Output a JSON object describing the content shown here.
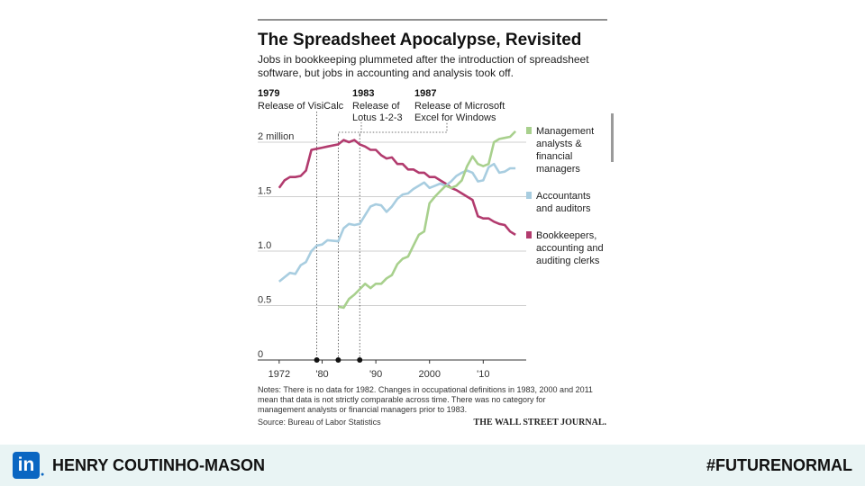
{
  "chart_data": {
    "type": "line",
    "title": "The Spreadsheet Apocalypse, Revisited",
    "subtitle_lines": [
      "Jobs in bookkeeping plummeted after the introduction of spreadsheet",
      "software, but jobs in accounting and analysis took off."
    ],
    "xlim": [
      1968,
      2018
    ],
    "ylim": [
      0,
      2.0
    ],
    "x_ticks": [
      {
        "x": 1972,
        "label": "1972"
      },
      {
        "x": 1980,
        "label": "'80"
      },
      {
        "x": 1990,
        "label": "'90"
      },
      {
        "x": 2000,
        "label": "2000"
      },
      {
        "x": 2010,
        "label": "'10"
      }
    ],
    "y_ticks": [
      {
        "y": 0,
        "label": "0"
      },
      {
        "y": 0.5,
        "label": "0.5"
      },
      {
        "y": 1.0,
        "label": "1.0"
      },
      {
        "y": 1.5,
        "label": "1.5"
      },
      {
        "y": 2.0,
        "label": "2 million"
      }
    ],
    "grid": true,
    "events": [
      {
        "year": 1979,
        "label_year": "1979",
        "desc": [
          "Release of VisiCalc"
        ]
      },
      {
        "year": 1983,
        "label_year": "1983",
        "desc": [
          "Release of",
          "Lotus 1-2-3"
        ]
      },
      {
        "year": 1987,
        "label_year": "1987",
        "desc": [
          "Release of Microsoft",
          "Excel for Windows"
        ]
      }
    ],
    "series": [
      {
        "name_lines": [
          "Bookkeepers,",
          "accounting and",
          "auditing clerks"
        ],
        "color": "#b23b6e",
        "x": [
          1972,
          1973,
          1974,
          1975,
          1976,
          1977,
          1978,
          1979,
          1980,
          1981,
          1983,
          1984,
          1985,
          1986,
          1987,
          1988,
          1989,
          1990,
          1991,
          1992,
          1993,
          1994,
          1995,
          1996,
          1997,
          1998,
          1999,
          2000,
          2001,
          2002,
          2003,
          2004,
          2005,
          2006,
          2007,
          2008,
          2009,
          2010,
          2011,
          2012,
          2013,
          2014,
          2015,
          2016
        ],
        "y": [
          1.58,
          1.65,
          1.68,
          1.68,
          1.69,
          1.74,
          1.93,
          1.94,
          1.95,
          1.96,
          1.98,
          2.02,
          2.0,
          2.02,
          1.98,
          1.96,
          1.93,
          1.93,
          1.88,
          1.85,
          1.86,
          1.8,
          1.8,
          1.75,
          1.75,
          1.72,
          1.72,
          1.68,
          1.68,
          1.65,
          1.62,
          1.58,
          1.56,
          1.53,
          1.5,
          1.47,
          1.32,
          1.3,
          1.3,
          1.27,
          1.25,
          1.24,
          1.18,
          1.15
        ]
      },
      {
        "name_lines": [
          "Accountants",
          "and auditors"
        ],
        "color": "#a8cde0",
        "x": [
          1972,
          1973,
          1974,
          1975,
          1976,
          1977,
          1978,
          1979,
          1980,
          1981,
          1983,
          1984,
          1985,
          1986,
          1987,
          1988,
          1989,
          1990,
          1991,
          1992,
          1993,
          1994,
          1995,
          1996,
          1997,
          1998,
          1999,
          2000,
          2001,
          2002,
          2003,
          2004,
          2005,
          2006,
          2007,
          2008,
          2009,
          2010,
          2011,
          2012,
          2013,
          2014,
          2015,
          2016
        ],
        "y": [
          0.72,
          0.76,
          0.8,
          0.79,
          0.87,
          0.9,
          1.0,
          1.05,
          1.06,
          1.1,
          1.09,
          1.21,
          1.25,
          1.24,
          1.25,
          1.33,
          1.41,
          1.43,
          1.42,
          1.36,
          1.41,
          1.48,
          1.52,
          1.53,
          1.57,
          1.6,
          1.63,
          1.58,
          1.6,
          1.62,
          1.6,
          1.64,
          1.69,
          1.72,
          1.74,
          1.72,
          1.64,
          1.65,
          1.77,
          1.8,
          1.72,
          1.73,
          1.76,
          1.76
        ]
      },
      {
        "name_lines": [
          "Management",
          "analysts &",
          "financial",
          "managers"
        ],
        "color": "#a8d08d",
        "x": [
          1983,
          1984,
          1985,
          1986,
          1987,
          1988,
          1989,
          1990,
          1991,
          1992,
          1993,
          1994,
          1995,
          1996,
          1997,
          1998,
          1999,
          2000,
          2001,
          2002,
          2003,
          2004,
          2005,
          2006,
          2007,
          2008,
          2009,
          2010,
          2011,
          2012,
          2013,
          2014,
          2015,
          2016
        ],
        "y": [
          0.49,
          0.48,
          0.56,
          0.6,
          0.65,
          0.7,
          0.66,
          0.7,
          0.7,
          0.75,
          0.78,
          0.88,
          0.93,
          0.95,
          1.05,
          1.15,
          1.18,
          1.44,
          1.5,
          1.55,
          1.6,
          1.58,
          1.6,
          1.65,
          1.78,
          1.87,
          1.8,
          1.78,
          1.8,
          2.0,
          2.03,
          2.04,
          2.05,
          2.1
        ]
      }
    ],
    "notes_lines": [
      "Notes: There is no data for 1982. Changes in occupational definitions in 1983, 2000 and 2011",
      "mean that data is not strictly comparable across time. There was no category for",
      "management analysts or financial managers prior to 1983."
    ],
    "source": "Source: Bureau of Labor Statistics",
    "publisher": "THE WALL STREET JOURNAL."
  },
  "footer": {
    "logo_text": "in",
    "author": "HENRY COUTINHO-MASON",
    "hashtag": "#FUTURENORMAL"
  }
}
